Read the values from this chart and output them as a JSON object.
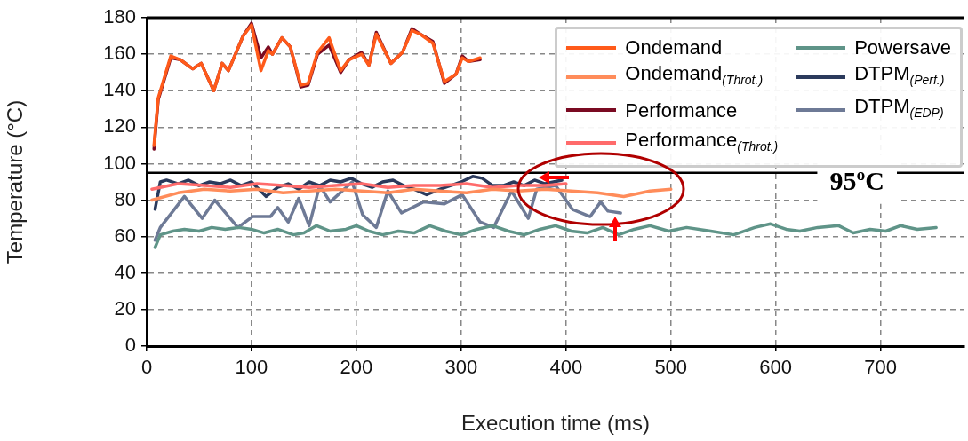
{
  "chart_data": {
    "type": "line",
    "xlabel": "Execution time (ms)",
    "ylabel": "Temperature (°C)",
    "xlim": [
      0,
      780
    ],
    "xticks": [
      0,
      100,
      200,
      300,
      400,
      500,
      600,
      700
    ],
    "ylim": [
      0,
      180
    ],
    "yticks": [
      0,
      20,
      40,
      60,
      80,
      100,
      120,
      140,
      160,
      180
    ],
    "grid": true,
    "legend": "top right",
    "ref_lines": [
      {
        "axis": "y",
        "value": 95,
        "label": "95ºC",
        "color": "#000000"
      }
    ],
    "series": [
      {
        "name": "Ondemand",
        "color": "#ff5a1a",
        "x": [
          7,
          11,
          23,
          32,
          44,
          52,
          64,
          72,
          78,
          92,
          100,
          109,
          116,
          120,
          129,
          137,
          147,
          154,
          163,
          174,
          185,
          193,
          205,
          212,
          219,
          233,
          244,
          253,
          261,
          273,
          284,
          295,
          301,
          307,
          318
        ],
        "values": [
          110,
          136,
          159,
          157,
          152,
          155,
          140,
          155,
          151,
          170,
          176,
          151,
          162,
          160,
          169,
          164,
          143,
          144,
          161,
          169,
          151,
          157,
          160,
          154,
          171,
          155,
          161,
          173,
          171,
          166,
          145,
          149,
          158,
          156,
          158
        ]
      },
      {
        "name": "Ondemand$_{(Throt.)}$",
        "color": "#ff8c5a",
        "x": [
          5,
          30,
          55,
          80,
          105,
          130,
          155,
          180,
          205,
          230,
          255,
          280,
          305,
          330,
          355,
          380,
          405,
          430,
          455,
          480,
          500
        ],
        "values": [
          80,
          84,
          86,
          85,
          86,
          84,
          85,
          86,
          85,
          84,
          86,
          85,
          84,
          86,
          85,
          86,
          85,
          84,
          82,
          85,
          86
        ]
      },
      {
        "name": "Performance",
        "color": "#7a0a22",
        "x": [
          7,
          11,
          23,
          32,
          44,
          52,
          64,
          72,
          78,
          92,
          100,
          109,
          116,
          120,
          129,
          137,
          147,
          154,
          163,
          174,
          185,
          193,
          205,
          212,
          219,
          233,
          244,
          253,
          261,
          273,
          284,
          295,
          301,
          307,
          318
        ],
        "values": [
          108,
          135,
          158,
          157,
          152,
          155,
          140,
          155,
          151,
          170,
          177,
          158,
          164,
          160,
          169,
          164,
          142,
          143,
          160,
          165,
          150,
          157,
          161,
          154,
          172,
          155,
          161,
          174,
          171,
          167,
          144,
          149,
          159,
          156,
          157
        ]
      },
      {
        "name": "Performance$_{(Throt.)}$",
        "color": "#ff6b6b",
        "x": [
          5,
          30,
          55,
          80,
          105,
          130,
          155,
          180,
          205,
          230,
          255,
          280,
          305,
          330,
          355,
          380,
          400
        ],
        "values": [
          86,
          89,
          88,
          87,
          89,
          88,
          87,
          88,
          89,
          87,
          88,
          88,
          89,
          87,
          88,
          88,
          89
        ]
      },
      {
        "name": "Powersave",
        "color": "#5f9488",
        "x": [
          8,
          13,
          25,
          36,
          50,
          62,
          75,
          88,
          100,
          112,
          125,
          140,
          150,
          162,
          175,
          190,
          200,
          212,
          225,
          240,
          255,
          270,
          285,
          300,
          315,
          330,
          345,
          360,
          375,
          390,
          405,
          420,
          435,
          450,
          465,
          480,
          498,
          515,
          538,
          560,
          580,
          595,
          610,
          623,
          640,
          660,
          674,
          690,
          705,
          719,
          735,
          753
        ],
        "values": [
          54,
          61,
          63,
          64,
          63,
          65,
          64,
          65,
          64,
          62,
          64,
          61,
          62,
          66,
          63,
          64,
          66,
          63,
          61,
          63,
          62,
          66,
          63,
          61,
          64,
          66,
          63,
          61,
          64,
          66,
          63,
          62,
          65,
          61,
          64,
          66,
          63,
          65,
          63,
          61,
          65,
          67,
          64,
          63,
          65,
          66,
          62,
          64,
          63,
          66,
          64,
          65
        ]
      },
      {
        "name": "DTPM$_{(Perf.)}$",
        "color": "#2b3a5c",
        "x": [
          8,
          13,
          19,
          30,
          40,
          50,
          60,
          70,
          80,
          90,
          100,
          114,
          125,
          135,
          145,
          155,
          165,
          175,
          185,
          195,
          205,
          215,
          225,
          235,
          245,
          255,
          267,
          280,
          290,
          300,
          311,
          320,
          330,
          340,
          350,
          360,
          370,
          380,
          396
        ],
        "values": [
          75,
          90,
          91,
          89,
          91,
          88,
          90,
          89,
          91,
          88,
          90,
          82,
          87,
          89,
          86,
          90,
          88,
          91,
          90,
          92,
          89,
          87,
          90,
          91,
          88,
          86,
          83,
          86,
          88,
          90,
          93,
          92,
          88,
          88,
          90,
          88,
          91,
          89,
          91
        ]
      },
      {
        "name": "DTPM$_{(EDP)}$",
        "color": "#6e7a96",
        "x": [
          8,
          13,
          36,
          53,
          65,
          87,
          101,
          118,
          125,
          135,
          145,
          155,
          165,
          175,
          196,
          206,
          219,
          230,
          243,
          264,
          284,
          301,
          318,
          331,
          348,
          364,
          372,
          390,
          406,
          423,
          433,
          440,
          452
        ],
        "values": [
          58,
          65,
          82,
          70,
          80,
          65,
          71,
          71,
          76,
          68,
          81,
          66,
          88,
          79,
          90,
          72,
          65,
          85,
          73,
          79,
          78,
          83,
          68,
          65,
          85,
          70,
          86,
          88,
          75,
          71,
          79,
          74,
          73
        ]
      }
    ]
  }
}
